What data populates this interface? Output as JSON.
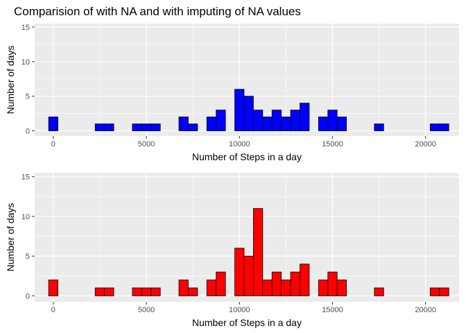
{
  "title": "Comparision of with NA and with imputing of NA values",
  "chart_data": [
    {
      "type": "bar",
      "panel": "top",
      "fill": "#0000ff",
      "outline": "#000000",
      "xlabel": "Number of Steps in a day",
      "ylabel": "Number of days",
      "xlim": [
        -1000,
        21800
      ],
      "ylim": [
        -0.75,
        15.5
      ],
      "xticks": [
        0,
        5000,
        10000,
        15000,
        20000
      ],
      "yticks": [
        0,
        5,
        10,
        15
      ],
      "bin_width": 500,
      "bins": [
        {
          "x": 0,
          "count": 2
        },
        {
          "x": 2500,
          "count": 1
        },
        {
          "x": 3000,
          "count": 1
        },
        {
          "x": 4500,
          "count": 1
        },
        {
          "x": 5000,
          "count": 1
        },
        {
          "x": 5500,
          "count": 1
        },
        {
          "x": 7000,
          "count": 2
        },
        {
          "x": 7500,
          "count": 1
        },
        {
          "x": 8500,
          "count": 2
        },
        {
          "x": 9000,
          "count": 3
        },
        {
          "x": 10000,
          "count": 6
        },
        {
          "x": 10500,
          "count": 5
        },
        {
          "x": 11000,
          "count": 3
        },
        {
          "x": 11500,
          "count": 2
        },
        {
          "x": 12000,
          "count": 3
        },
        {
          "x": 12500,
          "count": 2
        },
        {
          "x": 13000,
          "count": 3
        },
        {
          "x": 13500,
          "count": 4
        },
        {
          "x": 14500,
          "count": 2
        },
        {
          "x": 15000,
          "count": 3
        },
        {
          "x": 15500,
          "count": 2
        },
        {
          "x": 17500,
          "count": 1
        },
        {
          "x": 20500,
          "count": 1
        },
        {
          "x": 21000,
          "count": 1
        }
      ],
      "grid": true,
      "background": "#ebebeb"
    },
    {
      "type": "bar",
      "panel": "bottom",
      "fill": "#ff0000",
      "outline": "#000000",
      "xlabel": "Number of Steps in a day",
      "ylabel": "Number of days",
      "xlim": [
        -1000,
        21800
      ],
      "ylim": [
        -0.75,
        15.5
      ],
      "xticks": [
        0,
        5000,
        10000,
        15000,
        20000
      ],
      "yticks": [
        0,
        5,
        10,
        15
      ],
      "bin_width": 500,
      "bins": [
        {
          "x": 0,
          "count": 2
        },
        {
          "x": 2500,
          "count": 1
        },
        {
          "x": 3000,
          "count": 1
        },
        {
          "x": 4500,
          "count": 1
        },
        {
          "x": 5000,
          "count": 1
        },
        {
          "x": 5500,
          "count": 1
        },
        {
          "x": 7000,
          "count": 2
        },
        {
          "x": 7500,
          "count": 1
        },
        {
          "x": 8500,
          "count": 2
        },
        {
          "x": 9000,
          "count": 3
        },
        {
          "x": 10000,
          "count": 6
        },
        {
          "x": 10500,
          "count": 5
        },
        {
          "x": 11000,
          "count": 11
        },
        {
          "x": 11500,
          "count": 2
        },
        {
          "x": 12000,
          "count": 3
        },
        {
          "x": 12500,
          "count": 2
        },
        {
          "x": 13000,
          "count": 3
        },
        {
          "x": 13500,
          "count": 4
        },
        {
          "x": 14500,
          "count": 2
        },
        {
          "x": 15000,
          "count": 3
        },
        {
          "x": 15500,
          "count": 2
        },
        {
          "x": 17500,
          "count": 1
        },
        {
          "x": 20500,
          "count": 1
        },
        {
          "x": 21000,
          "count": 1
        }
      ],
      "grid": true,
      "background": "#ebebeb"
    }
  ]
}
